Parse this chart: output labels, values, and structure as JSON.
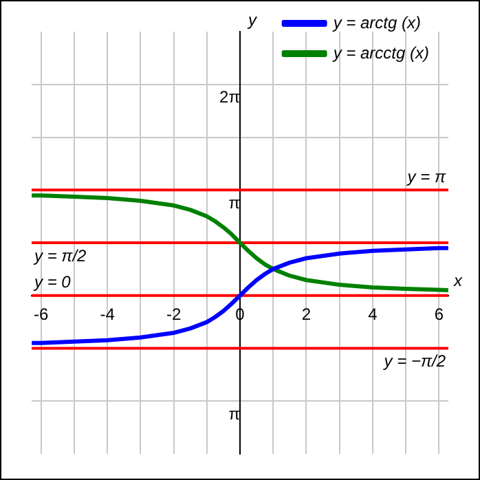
{
  "chart_data": {
    "type": "line",
    "xlabel": "x",
    "ylabel": "y",
    "x": [
      -6.28,
      -6,
      -5,
      -4,
      -3,
      -2,
      -1.5,
      -1,
      -0.75,
      -0.5,
      -0.25,
      0,
      0.25,
      0.5,
      0.75,
      1,
      1.5,
      2,
      3,
      4,
      5,
      6,
      6.28
    ],
    "series": [
      {
        "name": "y = arctg (x)",
        "color": "#0000ff",
        "values": [
          -1.41,
          -1.41,
          -1.37,
          -1.33,
          -1.25,
          -1.11,
          -0.98,
          -0.79,
          -0.64,
          -0.46,
          -0.24,
          0,
          0.24,
          0.46,
          0.64,
          0.79,
          0.98,
          1.11,
          1.25,
          1.33,
          1.37,
          1.41,
          1.41
        ]
      },
      {
        "name": "y = arcctg (x)",
        "color": "#008000",
        "values": [
          2.98,
          2.98,
          2.94,
          2.9,
          2.82,
          2.68,
          2.55,
          2.36,
          2.21,
          2.03,
          1.82,
          1.57,
          1.33,
          1.11,
          0.93,
          0.79,
          0.59,
          0.46,
          0.32,
          0.24,
          0.2,
          0.17,
          0.16
        ]
      }
    ],
    "xlim": [
      -6.2832,
      6.2832
    ],
    "ylim": [
      -4.7124,
      7.854
    ],
    "xticks": [
      -6,
      {
        "value": -5,
        "label": null
      },
      -4,
      {
        "value": -3,
        "label": null
      },
      -2,
      {
        "value": -1,
        "label": null
      },
      0,
      {
        "value": 1,
        "label": null
      },
      2,
      {
        "value": 3,
        "label": null
      },
      4,
      {
        "value": 5,
        "label": null
      },
      6
    ],
    "yticks": [
      {
        "value": -3.1416,
        "label": "π"
      },
      {
        "value": 3.1416,
        "label": "π"
      },
      {
        "value": 4.7124,
        "label": null
      },
      {
        "value": 6.2832,
        "label": "2π"
      }
    ],
    "ref_lines": [
      {
        "axis": "y",
        "value": 3.1416,
        "label": "y = π",
        "color": "#ff0000"
      },
      {
        "axis": "y",
        "value": 1.5708,
        "label": "y = π/2",
        "color": "#ff0000"
      },
      {
        "axis": "y",
        "value": 0,
        "label": "y = 0",
        "color": "#ff0000"
      },
      {
        "axis": "y",
        "value": -1.5708,
        "label": "y = −π/2",
        "color": "#ff0000"
      }
    ],
    "grid": true,
    "legend": "top right",
    "marker": "none",
    "line_style": "solid"
  }
}
